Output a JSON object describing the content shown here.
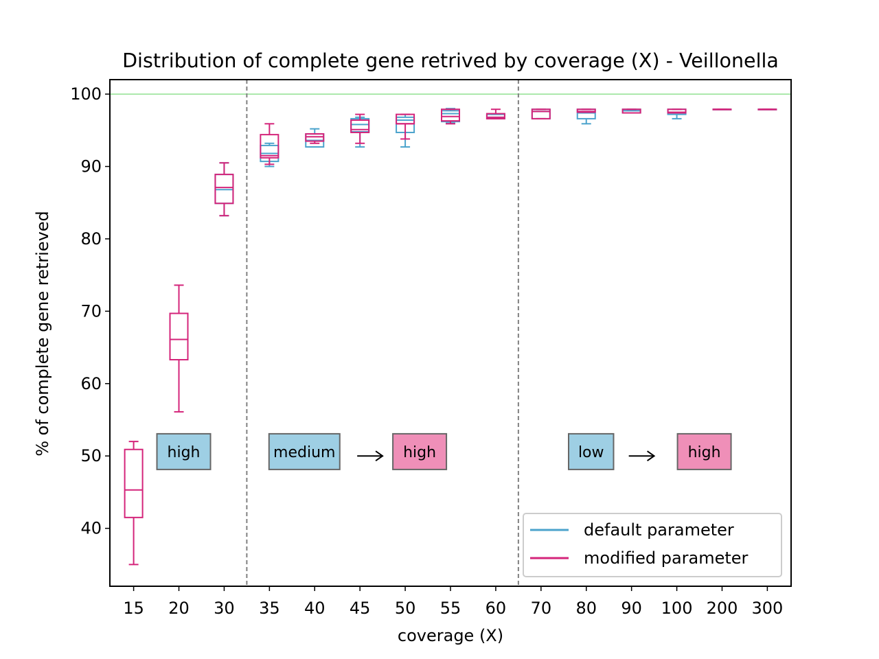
{
  "chart_data": {
    "type": "box",
    "title": "Distribution of complete gene retrived by coverage (X) - Veillonella",
    "xlabel": "coverage (X)",
    "ylabel": "% of complete gene retrieved",
    "categories": [
      "15",
      "20",
      "30",
      "35",
      "40",
      "45",
      "50",
      "55",
      "60",
      "70",
      "80",
      "90",
      "100",
      "200",
      "300"
    ],
    "ylim": [
      32,
      102
    ],
    "yticks": [
      40,
      50,
      60,
      70,
      80,
      90,
      100
    ],
    "reference_line": {
      "y": 100,
      "color": "#90e090"
    },
    "vertical_separators": [
      "30",
      "60"
    ],
    "series": [
      {
        "name": "default parameter",
        "color": "#4ba3cc",
        "boxes": [
          null,
          null,
          {
            "min": 83.2,
            "q1": 84.9,
            "median": 86.8,
            "q3": 88.9,
            "max": 90.5
          },
          {
            "min": 90.0,
            "q1": 90.7,
            "median": 91.8,
            "q3": 92.9,
            "max": 93.2
          },
          {
            "min": 92.7,
            "q1": 92.7,
            "median": 93.6,
            "q3": 94.5,
            "max": 95.2
          },
          {
            "min": 92.7,
            "q1": 94.8,
            "median": 95.8,
            "q3": 96.6,
            "max": 96.8
          },
          {
            "min": 92.7,
            "q1": 94.7,
            "median": 96.4,
            "q3": 96.8,
            "max": 97.2
          },
          {
            "min": 96.0,
            "q1": 96.2,
            "median": 97.3,
            "q3": 97.7,
            "max": 98.0
          },
          {
            "min": 96.6,
            "q1": 96.6,
            "median": 96.8,
            "q3": 97.2,
            "max": 97.2
          },
          {
            "min": 96.6,
            "q1": 96.6,
            "median": 97.6,
            "q3": 97.9,
            "max": 97.9
          },
          {
            "min": 95.9,
            "q1": 96.6,
            "median": 97.4,
            "q3": 97.9,
            "max": 97.9
          },
          {
            "min": 97.4,
            "q1": 97.4,
            "median": 97.7,
            "q3": 97.9,
            "max": 97.9
          },
          {
            "min": 96.6,
            "q1": 97.2,
            "median": 97.4,
            "q3": 97.9,
            "max": 97.9
          },
          {
            "min": 97.9,
            "q1": 97.9,
            "median": 97.9,
            "q3": 97.9,
            "max": 97.9
          },
          {
            "min": 97.9,
            "q1": 97.9,
            "median": 97.9,
            "q3": 97.9,
            "max": 97.9
          }
        ]
      },
      {
        "name": "modified parameter",
        "color": "#d4247a",
        "boxes": [
          {
            "min": 35.0,
            "q1": 41.5,
            "median": 45.3,
            "q3": 50.9,
            "max": 52.0
          },
          {
            "min": 56.1,
            "q1": 63.3,
            "median": 66.1,
            "q3": 69.7,
            "max": 73.6
          },
          {
            "min": 83.2,
            "q1": 84.9,
            "median": 87.1,
            "q3": 88.9,
            "max": 90.5
          },
          {
            "min": 90.3,
            "q1": 91.2,
            "median": 91.5,
            "q3": 94.4,
            "max": 95.9
          },
          {
            "min": 93.2,
            "q1": 93.5,
            "median": 94.1,
            "q3": 94.5,
            "max": 94.5
          },
          {
            "min": 93.2,
            "q1": 94.7,
            "median": 95.1,
            "q3": 96.4,
            "max": 97.2
          },
          {
            "min": 93.8,
            "q1": 95.9,
            "median": 95.9,
            "q3": 97.2,
            "max": 97.2
          },
          {
            "min": 95.9,
            "q1": 96.3,
            "median": 96.9,
            "q3": 97.9,
            "max": 97.9
          },
          {
            "min": 96.6,
            "q1": 96.6,
            "median": 96.8,
            "q3": 97.3,
            "max": 97.9
          },
          {
            "min": 96.6,
            "q1": 96.6,
            "median": 97.6,
            "q3": 97.9,
            "max": 97.9
          },
          {
            "min": 97.5,
            "q1": 97.5,
            "median": 97.6,
            "q3": 97.9,
            "max": 97.9
          },
          {
            "min": 97.4,
            "q1": 97.4,
            "median": 97.4,
            "q3": 97.9,
            "max": 97.9
          },
          {
            "min": 97.4,
            "q1": 97.4,
            "median": 97.5,
            "q3": 97.9,
            "max": 97.9
          },
          {
            "min": 97.9,
            "q1": 97.9,
            "median": 97.9,
            "q3": 97.9,
            "max": 97.9
          },
          {
            "min": 97.9,
            "q1": 97.9,
            "median": 97.9,
            "q3": 97.9,
            "max": 97.9
          }
        ]
      }
    ],
    "annotations": [
      {
        "label": "high",
        "style": "blue",
        "x_category": "20",
        "y": 50.6
      },
      {
        "label": "medium",
        "style": "blue",
        "x_category": "40",
        "y": 50.6
      },
      {
        "label": "high",
        "style": "pink",
        "x_category": "50",
        "y": 50.6
      },
      {
        "label": "low",
        "style": "blue",
        "x_category": "80",
        "y": 50.6
      },
      {
        "label": "high",
        "style": "pink",
        "x_category": "100",
        "y": 50.6
      }
    ],
    "arrows": [
      {
        "from_category": "45",
        "to_category": "50",
        "y": 50.0
      },
      {
        "from_category": "90",
        "to_category": "100",
        "y": 50.0
      }
    ],
    "annotation_colors": {
      "blue": "#9ecfe4",
      "pink": "#ef8fb8",
      "border": "#666666"
    },
    "legend": {
      "position": "lower right",
      "entries": [
        "default parameter",
        "modified parameter"
      ]
    },
    "grid": false
  }
}
